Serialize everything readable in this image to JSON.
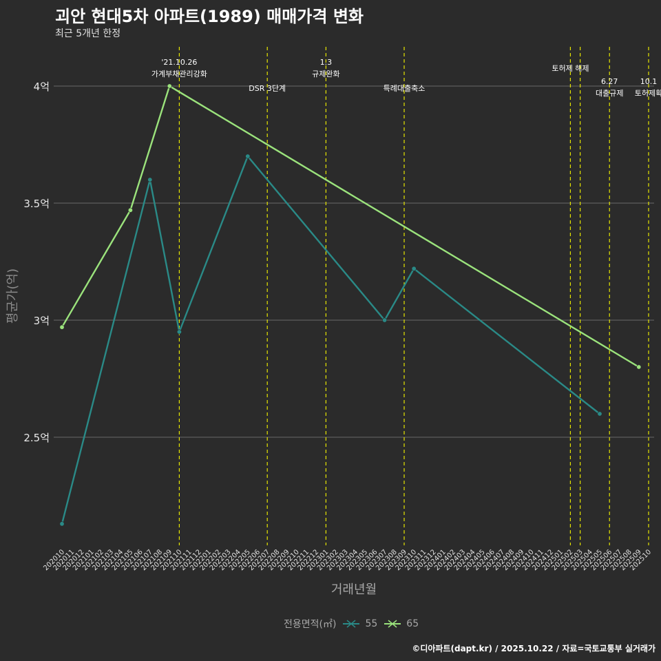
{
  "title": "괴안 현대5차 아파트(1989) 매매가격 변화",
  "subtitle": "최근 5개년 한정",
  "caption": "©디아파트(dapt.kr) / 2025.10.22 / 자료=국토교통부 실거래가",
  "chart_data": {
    "type": "line",
    "xlabel": "거래년월",
    "ylabel": "평균가(억)",
    "categories": [
      "202010",
      "202011",
      "202012",
      "202101",
      "202102",
      "202103",
      "202104",
      "202105",
      "202106",
      "202107",
      "202108",
      "202109",
      "202110",
      "202111",
      "202112",
      "202201",
      "202202",
      "202203",
      "202204",
      "202205",
      "202206",
      "202207",
      "202208",
      "202209",
      "202210",
      "202211",
      "202212",
      "202301",
      "202302",
      "202303",
      "202304",
      "202305",
      "202306",
      "202307",
      "202308",
      "202309",
      "202310",
      "202311",
      "202312",
      "202401",
      "202402",
      "202403",
      "202404",
      "202405",
      "202406",
      "202407",
      "202408",
      "202409",
      "202410",
      "202411",
      "202412",
      "202501",
      "202502",
      "202503",
      "202504",
      "202505",
      "202506",
      "202507",
      "202508",
      "202509",
      "202510"
    ],
    "ylim": [
      2.05,
      4.2
    ],
    "yticks": [
      2.5,
      3,
      3.5,
      4
    ],
    "ytick_labels": [
      "2.5억",
      "3억",
      "3.5억",
      "4억"
    ],
    "series": [
      {
        "name": "55",
        "color": "#2a8a87",
        "points": [
          [
            "202010",
            2.13
          ],
          [
            "202107",
            3.6
          ],
          [
            "202110",
            2.95
          ],
          [
            "202205",
            3.7
          ],
          [
            "202307",
            3.0
          ],
          [
            "202310",
            3.22
          ],
          [
            "202505",
            2.6
          ]
        ]
      },
      {
        "name": "65",
        "color": "#9be37c",
        "points": [
          [
            "202010",
            2.97
          ],
          [
            "202105",
            3.47
          ],
          [
            "202109",
            4.0
          ],
          [
            "202509",
            2.8
          ]
        ]
      }
    ],
    "policy_lines": [
      {
        "month": "202110",
        "top": "'21.10.26",
        "bottom": "가계부채관리강화",
        "row": 1
      },
      {
        "month": "202207",
        "top": "",
        "bottom": "DSR 3단계",
        "row": 2
      },
      {
        "month": "202301",
        "top": "1.3",
        "bottom": "규제완화",
        "row": 1
      },
      {
        "month": "202309",
        "top": "",
        "bottom": "특례대출축소",
        "row": 2
      },
      {
        "month": "202502",
        "top": "",
        "bottom": "토허제 해제",
        "row": 0
      },
      {
        "month": "202503",
        "top": "",
        "bottom": "",
        "row": 0
      },
      {
        "month": "202506",
        "top": "6.27",
        "bottom": "대출규제",
        "row": 3
      },
      {
        "month": "202510",
        "top": "10.1",
        "bottom": "토허제확",
        "row": 3
      }
    ],
    "legend_title": "전용면적(㎡)",
    "legend_position": "bottom"
  }
}
